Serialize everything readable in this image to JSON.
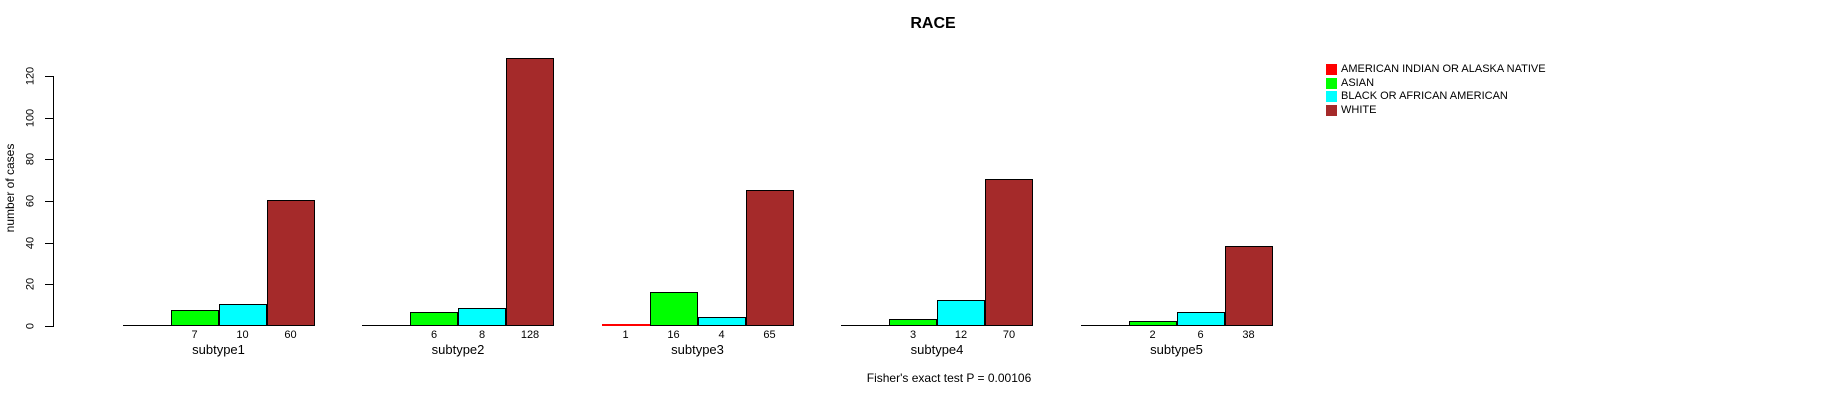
{
  "title": "RACE",
  "footer": "Fisher's exact test P = 0.00106",
  "y_axis": {
    "label": "number of cases",
    "ticks": [
      0,
      20,
      40,
      60,
      80,
      100,
      120
    ]
  },
  "colors": {
    "american_indian_or_alaska_native": "#FF0000",
    "asian": "#00FF00",
    "black_or_african_american": "#00FFFF",
    "white": "#A52A2A",
    "axis": "#000000",
    "background": "#FFFFFF"
  },
  "chart_data": {
    "type": "bar",
    "title": "RACE",
    "xlabel": "",
    "ylabel": "number of cases",
    "categories": [
      "subtype1",
      "subtype2",
      "subtype3",
      "subtype4",
      "subtype5"
    ],
    "series": [
      {
        "name": "AMERICAN INDIAN OR ALASKA NATIVE",
        "color": "#FF0000",
        "values": [
          0,
          0,
          1,
          0,
          0
        ]
      },
      {
        "name": "ASIAN",
        "color": "#00FF00",
        "values": [
          7,
          6,
          16,
          3,
          2
        ]
      },
      {
        "name": "BLACK OR AFRICAN AMERICAN",
        "color": "#00FFFF",
        "values": [
          10,
          8,
          4,
          12,
          6
        ]
      },
      {
        "name": "WHITE",
        "color": "#A52A2A",
        "values": [
          60,
          128,
          65,
          70,
          38
        ]
      }
    ],
    "yticks": [
      0,
      20,
      40,
      60,
      80,
      100,
      120
    ],
    "ylim": [
      0,
      130
    ],
    "grid": false,
    "legend_position": "right",
    "value_labels": "nonzero bar values printed below the x-axis under each bar",
    "annotation": "Fisher's exact test P = 0.00106"
  }
}
